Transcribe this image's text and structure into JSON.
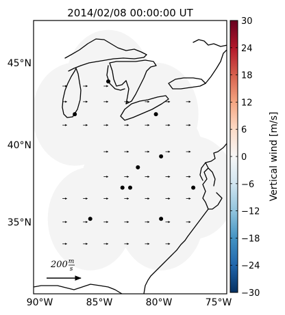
{
  "title": "2014/02/08 00:00:00 UT",
  "axes": {
    "x_ticks": [
      {
        "value": -90,
        "label": "90°W"
      },
      {
        "value": -85,
        "label": "85°W"
      },
      {
        "value": -80,
        "label": "80°W"
      },
      {
        "value": -75,
        "label": "75°W"
      }
    ],
    "y_ticks": [
      {
        "value": 35,
        "label": "35°N"
      },
      {
        "value": 40,
        "label": "40°N"
      },
      {
        "value": 45,
        "label": "45°N"
      }
    ],
    "lon_range": [
      -90,
      -75
    ],
    "lat_range": [
      30.5,
      48.0
    ]
  },
  "colorbar": {
    "label": "Vertical wind [m/s]",
    "range": [
      -30,
      30
    ],
    "ticks": [
      {
        "value": 30,
        "label": "30"
      },
      {
        "value": 24,
        "label": "24"
      },
      {
        "value": 18,
        "label": "18"
      },
      {
        "value": 12,
        "label": "12"
      },
      {
        "value": 6,
        "label": "6"
      },
      {
        "value": 0,
        "label": "0"
      },
      {
        "value": -6,
        "label": "−6"
      },
      {
        "value": -12,
        "label": "−12"
      },
      {
        "value": -18,
        "label": "−18"
      },
      {
        "value": -24,
        "label": "−24"
      },
      {
        "value": -30,
        "label": "−30"
      }
    ],
    "colormap": "RdBu_r"
  },
  "reference_vector": {
    "number": "200",
    "unit_num": "m",
    "unit_den": "s"
  },
  "chart_data": {
    "type": "scatter",
    "title": "2014/02/08 00:00:00 UT",
    "stations": [
      {
        "lon": -84.2,
        "lat": 44.1
      },
      {
        "lon": -86.8,
        "lat": 42.0
      },
      {
        "lon": -80.5,
        "lat": 42.0
      },
      {
        "lon": -81.9,
        "lat": 38.6
      },
      {
        "lon": -80.1,
        "lat": 39.3
      },
      {
        "lon": -83.1,
        "lat": 37.3
      },
      {
        "lon": -82.5,
        "lat": 37.3
      },
      {
        "lon": -77.6,
        "lat": 37.3
      },
      {
        "lon": -85.6,
        "lat": 35.3
      },
      {
        "lon": -80.1,
        "lat": 35.3
      }
    ],
    "coverage_circles": [
      {
        "lon": -86.8,
        "lat": 42.0
      },
      {
        "lon": -84.2,
        "lat": 44.1
      },
      {
        "lon": -80.5,
        "lat": 42.0
      },
      {
        "lon": -81.9,
        "lat": 38.6
      },
      {
        "lon": -80.1,
        "lat": 39.3
      },
      {
        "lon": -83.1,
        "lat": 37.3
      },
      {
        "lon": -77.6,
        "lat": 37.3
      },
      {
        "lon": -85.6,
        "lat": 35.3
      },
      {
        "lon": -80.1,
        "lat": 35.3
      }
    ],
    "coverage_radius_deg": 3.3,
    "vector_rows": [
      {
        "lat": 43.8,
        "lons": [
          -87.6,
          -86.0,
          -84.4
        ]
      },
      {
        "lat": 42.8,
        "lons": [
          -87.6,
          -86.0,
          -84.4,
          -82.8,
          -81.2,
          -79.6,
          -78.0
        ]
      },
      {
        "lat": 41.3,
        "lons": [
          -87.6,
          -86.0,
          -84.4,
          -82.8,
          -81.2,
          -79.6,
          -78.0
        ]
      },
      {
        "lat": 39.6,
        "lons": [
          -84.4,
          -82.8,
          -81.2,
          -79.6,
          -78.0
        ]
      },
      {
        "lat": 38.0,
        "lons": [
          -84.4,
          -82.8,
          -81.2,
          -79.6,
          -78.0
        ]
      },
      {
        "lat": 36.6,
        "lons": [
          -87.6,
          -86.0,
          -84.4,
          -82.8,
          -81.2,
          -79.6,
          -78.0
        ]
      },
      {
        "lat": 35.1,
        "lons": [
          -87.6,
          -86.0,
          -84.4,
          -82.8,
          -81.2,
          -79.6,
          -78.0
        ]
      },
      {
        "lat": 33.7,
        "lons": [
          -87.6,
          -86.0,
          -84.4,
          -82.8,
          -81.2,
          -79.6
        ]
      }
    ],
    "vertical_wind_value": 0,
    "coverage_color": "#f4f4f4"
  },
  "colors": {
    "background": "#ffffff",
    "coverage": "#f4f4f4",
    "coast": "#000000",
    "station": "#000000"
  }
}
